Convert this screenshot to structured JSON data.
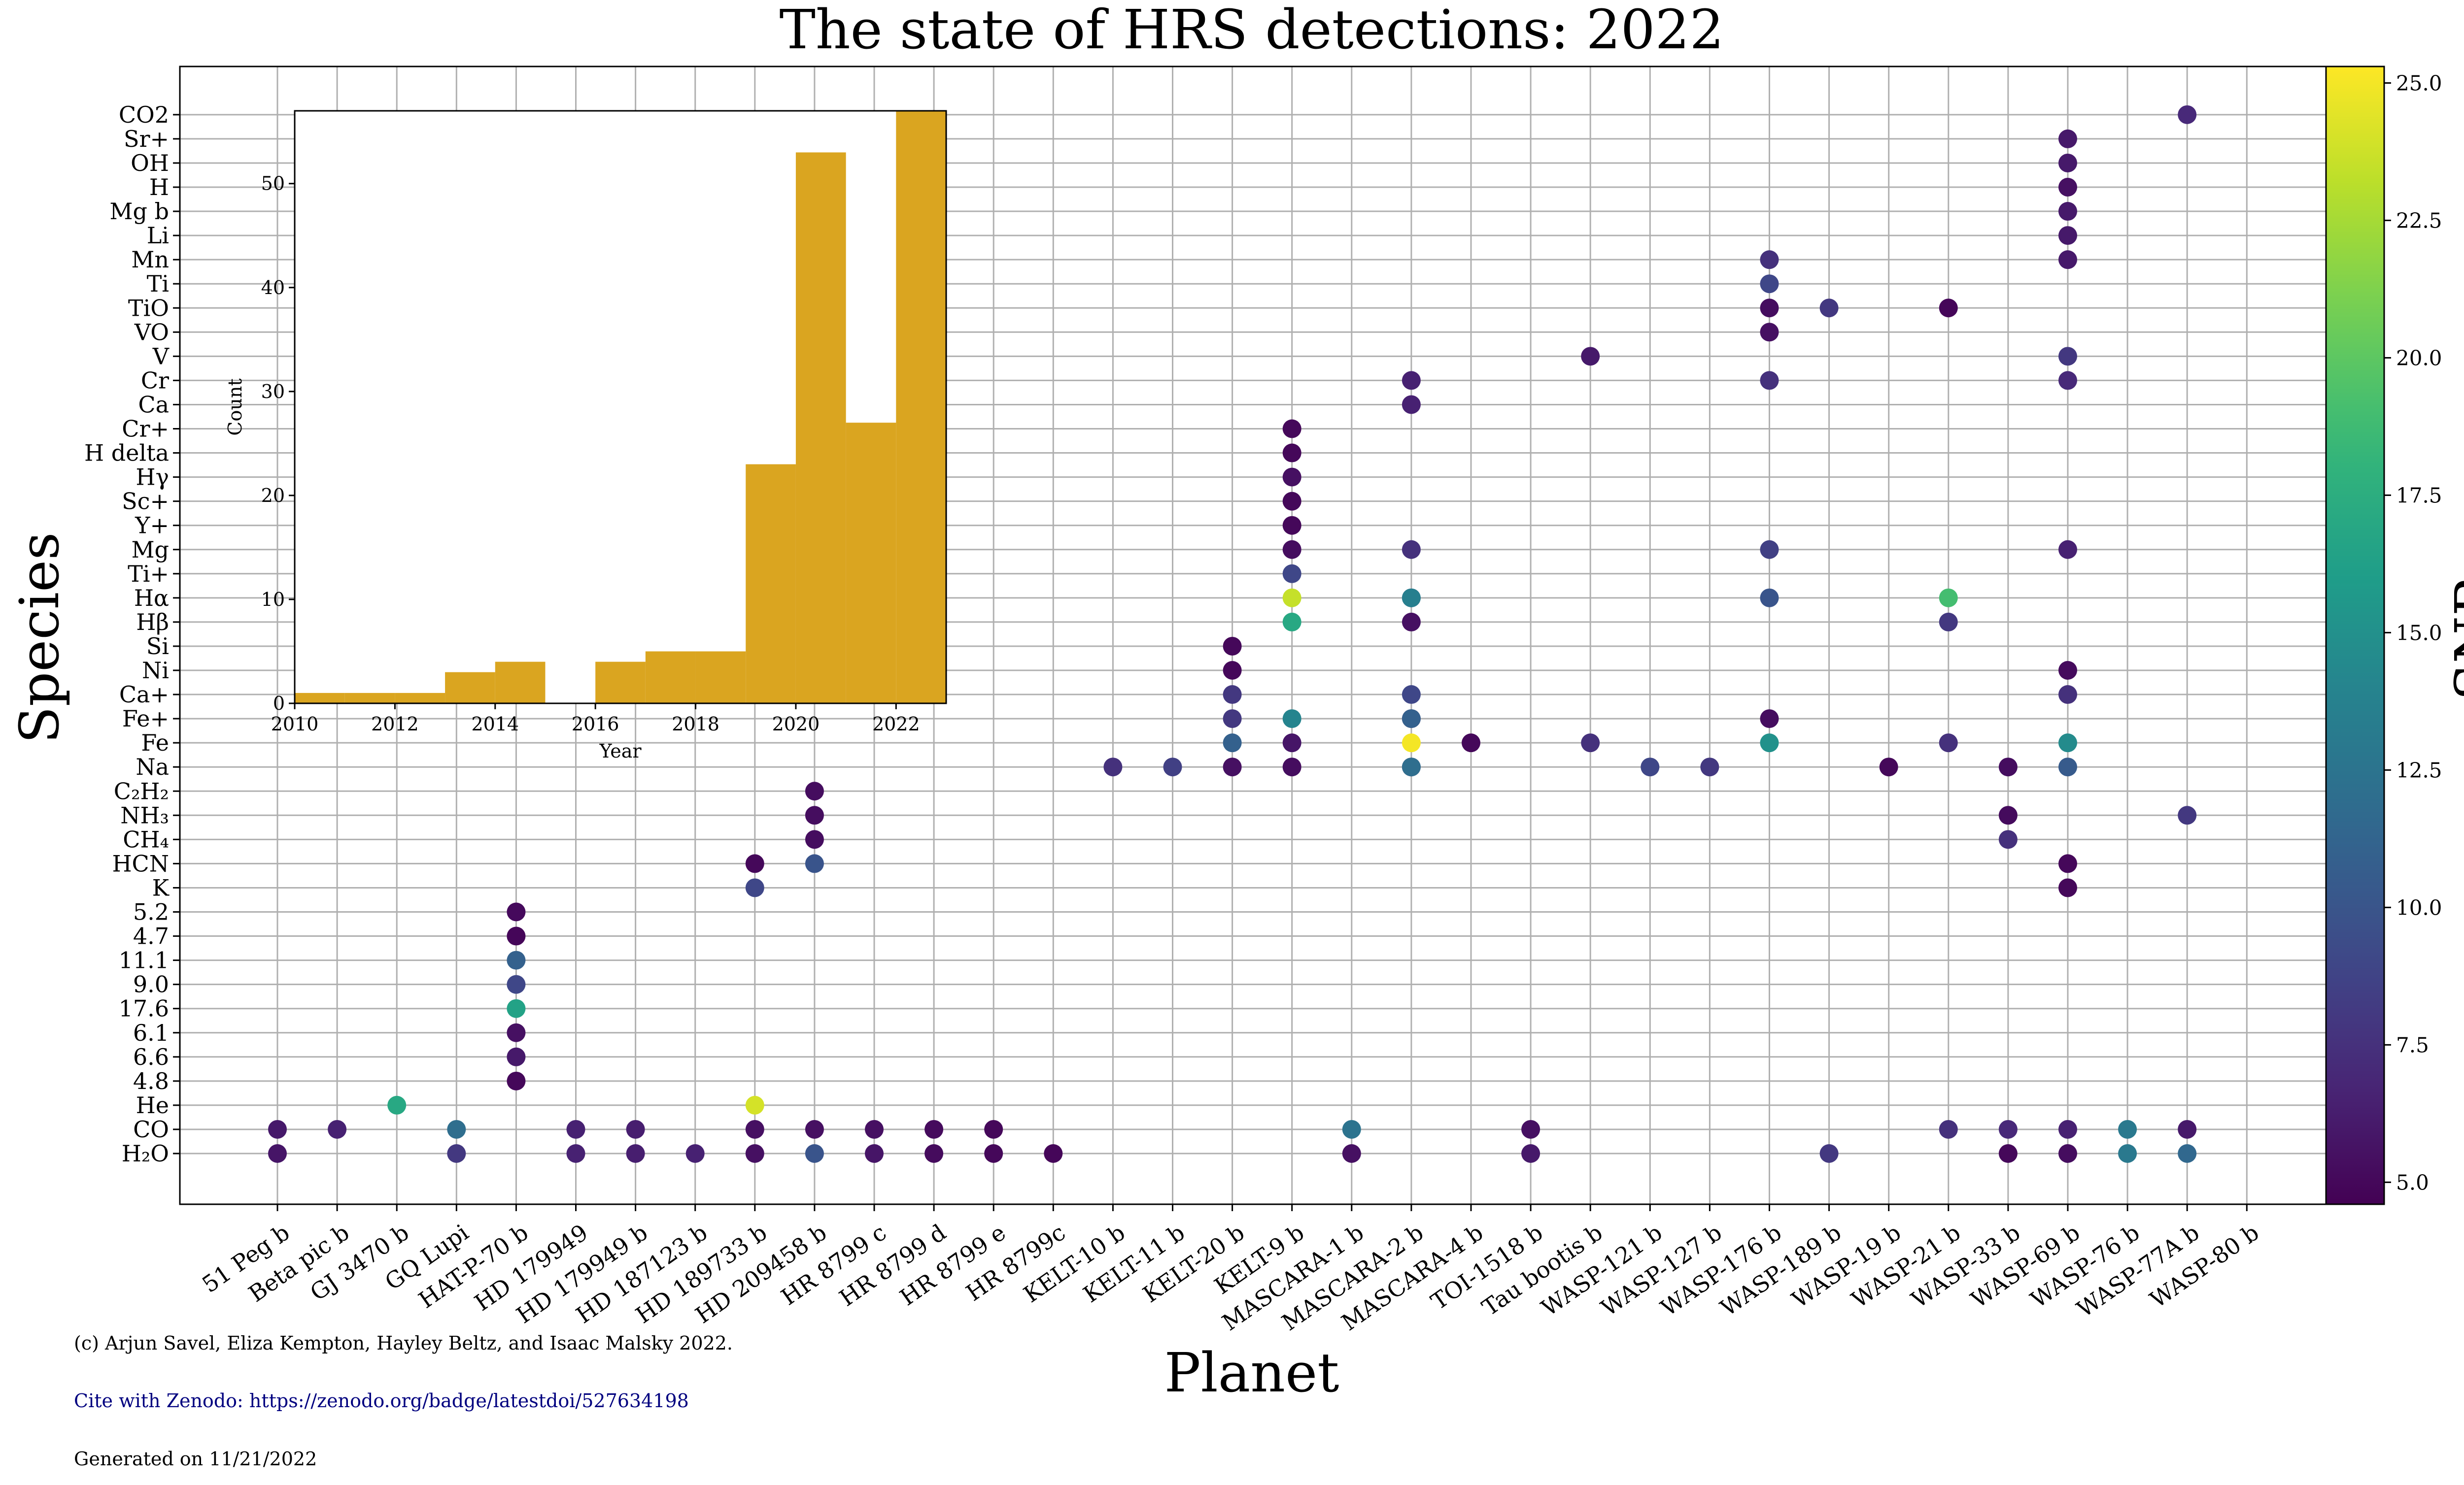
{
  "chart_data": {
    "type": "scatter",
    "title": "The state of HRS detections: 2022",
    "xlabel": "Planet",
    "ylabel": "Species",
    "grid": true,
    "colorbar": {
      "label": "SNR",
      "colormap": "viridis",
      "range": [
        4.6,
        25.3
      ],
      "ticks": [
        "5.0",
        "7.5",
        "10.0",
        "12.5",
        "15.0",
        "17.5",
        "20.0",
        "22.5",
        "25.0"
      ]
    },
    "planets": [
      "51 Peg b",
      "Beta pic b",
      "GJ 3470 b",
      "GQ Lupi",
      "HAT-P-70 b",
      "HD 179949",
      "HD 179949 b",
      "HD 187123 b",
      "HD 189733 b",
      "HD 209458 b",
      "HR 8799 c",
      "HR 8799 d",
      "HR 8799 e",
      "HR 8799c",
      "KELT-10 b",
      "KELT-11 b",
      "KELT-20 b",
      "KELT-9 b",
      "MASCARA-1 b",
      "MASCARA-2 b",
      "MASCARA-4 b",
      "TOI-1518 b",
      "Tau bootis b",
      "WASP-121 b",
      "WASP-127 b",
      "WASP-176 b",
      "WASP-189 b",
      "WASP-19 b",
      "WASP-21 b",
      "WASP-33 b",
      "WASP-69 b",
      "WASP-76 b",
      "WASP-77A b",
      "WASP-80 b"
    ],
    "species": [
      "H2O",
      "CO",
      "He",
      "4.8",
      "6.6",
      "6.1",
      "17.6",
      "9.0",
      "11.1",
      "4.7",
      "5.2",
      "K",
      "HCN",
      "CH4",
      "NH3",
      "C2H2",
      "Na",
      "Fe",
      "Fe+",
      "Ca+",
      "Ni",
      "Si",
      "Hβ",
      "Hα",
      "Ti+",
      "Mg",
      "Y+",
      "Sc+",
      "Hγ",
      "H delta",
      "Cr+",
      "Ca",
      "Cr",
      "V",
      "VO",
      "TiO",
      "Ti",
      "Mn",
      "Li",
      "Mg b",
      "H",
      "OH",
      "Sr+",
      "CO2"
    ],
    "species_display": [
      "H₂O",
      "CO",
      "He",
      "4.8",
      "6.6",
      "6.1",
      "17.6",
      "9.0",
      "11.1",
      "4.7",
      "5.2",
      "K",
      "HCN",
      "CH₄",
      "NH₃",
      "C₂H₂",
      "Na",
      "Fe",
      "Fe+",
      "Ca+",
      "Ni",
      "Si",
      "Hβ",
      "Hα",
      "Ti+",
      "Mg",
      "Y+",
      "Sc+",
      "Hγ",
      "H delta",
      "Cr+",
      "Ca",
      "Cr",
      "V",
      "VO",
      "TiO",
      "Ti",
      "Mn",
      "Li",
      "Mg b",
      "H",
      "OH",
      "Sr+",
      "CO2"
    ],
    "points": [
      {
        "planet": "51 Peg b",
        "species": "H2O",
        "snr": 5.8
      },
      {
        "planet": "51 Peg b",
        "species": "CO",
        "snr": 6.0
      },
      {
        "planet": "Beta pic b",
        "species": "CO",
        "snr": 6.5
      },
      {
        "planet": "GJ 3470 b",
        "species": "He",
        "snr": 17.0
      },
      {
        "planet": "GQ Lupi",
        "species": "H2O",
        "snr": 8.0
      },
      {
        "planet": "GQ Lupi",
        "species": "CO",
        "snr": 12.0
      },
      {
        "planet": "HAT-P-70 b",
        "species": "4.8",
        "snr": 5.0
      },
      {
        "planet": "HAT-P-70 b",
        "species": "6.6",
        "snr": 6.0
      },
      {
        "planet": "HAT-P-70 b",
        "species": "6.1",
        "snr": 5.5
      },
      {
        "planet": "HAT-P-70 b",
        "species": "17.6",
        "snr": 16.5
      },
      {
        "planet": "HAT-P-70 b",
        "species": "9.0",
        "snr": 9.0
      },
      {
        "planet": "HAT-P-70 b",
        "species": "11.1",
        "snr": 11.0
      },
      {
        "planet": "HAT-P-70 b",
        "species": "4.7",
        "snr": 4.9
      },
      {
        "planet": "HAT-P-70 b",
        "species": "5.2",
        "snr": 5.1
      },
      {
        "planet": "HD 179949",
        "species": "H2O",
        "snr": 6.5
      },
      {
        "planet": "HD 179949",
        "species": "CO",
        "snr": 6.5
      },
      {
        "planet": "HD 179949 b",
        "species": "H2O",
        "snr": 6.3
      },
      {
        "planet": "HD 179949 b",
        "species": "CO",
        "snr": 6.3
      },
      {
        "planet": "HD 187123 b",
        "species": "H2O",
        "snr": 6.5
      },
      {
        "planet": "HD 189733 b",
        "species": "H2O",
        "snr": 5.5
      },
      {
        "planet": "HD 189733 b",
        "species": "CO",
        "snr": 5.5
      },
      {
        "planet": "HD 189733 b",
        "species": "He",
        "snr": 24.0
      },
      {
        "planet": "HD 189733 b",
        "species": "K",
        "snr": 9.0
      },
      {
        "planet": "HD 189733 b",
        "species": "HCN",
        "snr": 5.0
      },
      {
        "planet": "HD 209458 b",
        "species": "H2O",
        "snr": 10.0
      },
      {
        "planet": "HD 209458 b",
        "species": "CO",
        "snr": 5.5
      },
      {
        "planet": "HD 209458 b",
        "species": "HCN",
        "snr": 10.0
      },
      {
        "planet": "HD 209458 b",
        "species": "CH4",
        "snr": 5.3
      },
      {
        "planet": "HD 209458 b",
        "species": "NH3",
        "snr": 5.3
      },
      {
        "planet": "HD 209458 b",
        "species": "C2H2",
        "snr": 5.3
      },
      {
        "planet": "HR 8799 c",
        "species": "H2O",
        "snr": 5.8
      },
      {
        "planet": "HR 8799 c",
        "species": "CO",
        "snr": 5.5
      },
      {
        "planet": "HR 8799 d",
        "species": "H2O",
        "snr": 5.2
      },
      {
        "planet": "HR 8799 d",
        "species": "CO",
        "snr": 5.2
      },
      {
        "planet": "HR 8799 e",
        "species": "H2O",
        "snr": 5.0
      },
      {
        "planet": "HR 8799 e",
        "species": "CO",
        "snr": 5.0
      },
      {
        "planet": "HR 8799c",
        "species": "H2O",
        "snr": 4.9
      },
      {
        "planet": "KELT-10 b",
        "species": "Na",
        "snr": 7.5
      },
      {
        "planet": "KELT-11 b",
        "species": "Na",
        "snr": 8.5
      },
      {
        "planet": "KELT-20 b",
        "species": "Na",
        "snr": 5.5
      },
      {
        "planet": "KELT-20 b",
        "species": "Fe",
        "snr": 11.0
      },
      {
        "planet": "KELT-20 b",
        "species": "Fe+",
        "snr": 8.0
      },
      {
        "planet": "KELT-20 b",
        "species": "Ca+",
        "snr": 8.0
      },
      {
        "planet": "KELT-20 b",
        "species": "Ni",
        "snr": 5.0
      },
      {
        "planet": "KELT-20 b",
        "species": "Si",
        "snr": 5.0
      },
      {
        "planet": "KELT-9 b",
        "species": "Na",
        "snr": 5.3
      },
      {
        "planet": "KELT-9 b",
        "species": "Fe",
        "snr": 5.8
      },
      {
        "planet": "KELT-9 b",
        "species": "Fe+",
        "snr": 14.0
      },
      {
        "planet": "KELT-9 b",
        "species": "Hβ",
        "snr": 17.0
      },
      {
        "planet": "KELT-9 b",
        "species": "Hα",
        "snr": 23.5
      },
      {
        "planet": "KELT-9 b",
        "species": "Ti+",
        "snr": 9.0
      },
      {
        "planet": "KELT-9 b",
        "species": "Mg",
        "snr": 5.3
      },
      {
        "planet": "KELT-9 b",
        "species": "Y+",
        "snr": 5.0
      },
      {
        "planet": "KELT-9 b",
        "species": "Sc+",
        "snr": 5.0
      },
      {
        "planet": "KELT-9 b",
        "species": "Hγ",
        "snr": 5.5
      },
      {
        "planet": "KELT-9 b",
        "species": "H delta",
        "snr": 5.0
      },
      {
        "planet": "KELT-9 b",
        "species": "Cr+",
        "snr": 5.0
      },
      {
        "planet": "MASCARA-1 b",
        "species": "H2O",
        "snr": 5.5
      },
      {
        "planet": "MASCARA-1 b",
        "species": "CO",
        "snr": 12.5
      },
      {
        "planet": "MASCARA-2 b",
        "species": "Na",
        "snr": 7.0
      },
      {
        "planet": "MASCARA-2 b",
        "species": "Fe+",
        "snr": 5.3
      },
      {
        "planet": "MASCARA-2 b",
        "species": "Hα",
        "snr": 9.0
      },
      {
        "planet": "MASCARA-2 b",
        "species": "Na",
        "snr": 12.0
      },
      {
        "planet": "MASCARA-2 b",
        "species": "Fe",
        "snr": 25.0
      },
      {
        "planet": "MASCARA-2 b",
        "species": "Fe+",
        "snr": 11.0
      },
      {
        "planet": "MASCARA-2 b",
        "species": "Ca+",
        "snr": 9.0
      },
      {
        "planet": "MASCARA-2 b",
        "species": "Hβ",
        "snr": 5.5
      },
      {
        "planet": "MASCARA-2 b",
        "species": "Hα",
        "snr": 13.5
      },
      {
        "planet": "MASCARA-2 b",
        "species": "Mg",
        "snr": 7.5
      },
      {
        "planet": "MASCARA-2 b",
        "species": "Ca",
        "snr": 6.5
      },
      {
        "planet": "MASCARA-2 b",
        "species": "Cr",
        "snr": 6.5
      },
      {
        "planet": "MASCARA-4 b",
        "species": "Fe",
        "snr": 5.0
      },
      {
        "planet": "TOI-1518 b",
        "species": "H2O",
        "snr": 6.0
      },
      {
        "planet": "TOI-1518 b",
        "species": "CO",
        "snr": 5.5
      },
      {
        "planet": "Tau bootis b",
        "species": "V",
        "snr": 6.0
      },
      {
        "planet": "Tau bootis b",
        "species": "Fe",
        "snr": 7.5
      },
      {
        "planet": "WASP-121 b",
        "species": "Na",
        "snr": 9.0
      },
      {
        "planet": "WASP-127 b",
        "species": "Na",
        "snr": 8.0
      },
      {
        "planet": "WASP-176 b",
        "species": "Fe",
        "snr": 15.0
      },
      {
        "planet": "WASP-176 b",
        "species": "Fe+",
        "snr": 5.3
      },
      {
        "planet": "WASP-176 b",
        "species": "Hα",
        "snr": 10.0
      },
      {
        "planet": "WASP-176 b",
        "species": "Mg",
        "snr": 8.5
      },
      {
        "planet": "WASP-176 b",
        "species": "Cr",
        "snr": 7.5
      },
      {
        "planet": "WASP-176 b",
        "species": "VO",
        "snr": 5.5
      },
      {
        "planet": "WASP-176 b",
        "species": "TiO",
        "snr": 5.3
      },
      {
        "planet": "WASP-176 b",
        "species": "Ti",
        "snr": 9.0
      },
      {
        "planet": "WASP-176 b",
        "species": "Mn",
        "snr": 7.5
      },
      {
        "planet": "WASP-189 b",
        "species": "H2O",
        "snr": 8.0
      },
      {
        "planet": "WASP-189 b",
        "species": "TiO",
        "snr": 8.0
      },
      {
        "planet": "WASP-19 b",
        "species": "Na",
        "snr": 5.0
      },
      {
        "planet": "WASP-21 b",
        "species": "CO",
        "snr": 7.5
      },
      {
        "planet": "WASP-21 b",
        "species": "Fe",
        "snr": 7.5
      },
      {
        "planet": "WASP-21 b",
        "species": "Hβ",
        "snr": 8.0
      },
      {
        "planet": "WASP-21 b",
        "species": "Hα",
        "snr": 19.0
      },
      {
        "planet": "WASP-21 b",
        "species": "TiO",
        "snr": 4.9
      },
      {
        "planet": "WASP-33 b",
        "species": "H2O",
        "snr": 5.0
      },
      {
        "planet": "WASP-33 b",
        "species": "CO",
        "snr": 7.0
      },
      {
        "planet": "WASP-33 b",
        "species": "Na",
        "snr": 5.3
      },
      {
        "planet": "WASP-33 b",
        "species": "NH3",
        "snr": 5.2
      },
      {
        "planet": "WASP-33 b",
        "species": "CH4",
        "snr": 7.5
      },
      {
        "planet": "WASP-69 b",
        "species": "H2O",
        "snr": 5.3
      },
      {
        "planet": "WASP-69 b",
        "species": "CO",
        "snr": 6.5
      },
      {
        "planet": "WASP-69 b",
        "species": "K",
        "snr": 5.0
      },
      {
        "planet": "WASP-69 b",
        "species": "HCN",
        "snr": 5.0
      },
      {
        "planet": "WASP-69 b",
        "species": "Na",
        "snr": 10.5
      },
      {
        "planet": "WASP-69 b",
        "species": "Fe",
        "snr": 14.5
      },
      {
        "planet": "WASP-69 b",
        "species": "Ca+",
        "snr": 7.5
      },
      {
        "planet": "WASP-69 b",
        "species": "Ni",
        "snr": 5.2
      },
      {
        "planet": "WASP-69 b",
        "species": "Mg",
        "snr": 6.5
      },
      {
        "planet": "WASP-69 b",
        "species": "Cr",
        "snr": 7.0
      },
      {
        "planet": "WASP-69 b",
        "species": "V",
        "snr": 8.0
      },
      {
        "planet": "WASP-69 b",
        "species": "Mn",
        "snr": 6.0
      },
      {
        "planet": "WASP-69 b",
        "species": "Li",
        "snr": 6.0
      },
      {
        "planet": "WASP-69 b",
        "species": "Mg b",
        "snr": 6.0
      },
      {
        "planet": "WASP-69 b",
        "species": "H",
        "snr": 5.5
      },
      {
        "planet": "WASP-69 b",
        "species": "OH",
        "snr": 6.0
      },
      {
        "planet": "WASP-69 b",
        "species": "Sr+",
        "snr": 6.0
      },
      {
        "planet": "WASP-76 b",
        "species": "H2O",
        "snr": 13.0
      },
      {
        "planet": "WASP-76 b",
        "species": "CO",
        "snr": 13.0
      },
      {
        "planet": "WASP-77A b",
        "species": "H2O",
        "snr": 11.5
      },
      {
        "planet": "WASP-77A b",
        "species": "CO",
        "snr": 6.0
      },
      {
        "planet": "WASP-77A b",
        "species": "NH3",
        "snr": 8.0
      },
      {
        "planet": "WASP-77A b",
        "species": "CO2",
        "snr": 7.0
      }
    ],
    "inset_histogram": {
      "type": "bar",
      "xlabel": "Year",
      "ylabel": "Count",
      "xlim": [
        2010,
        2023
      ],
      "ylim": [
        0,
        57
      ],
      "x_ticks": [
        2010,
        2012,
        2014,
        2016,
        2018,
        2020,
        2022
      ],
      "y_ticks": [
        0,
        10,
        20,
        30,
        40,
        50
      ],
      "bin_edges": [
        2010,
        2011,
        2012,
        2013,
        2014,
        2015,
        2016,
        2017,
        2018,
        2019,
        2020,
        2021,
        2022,
        2023
      ],
      "counts": [
        1,
        1,
        1,
        3,
        4,
        0,
        4,
        5,
        5,
        23,
        53,
        27,
        57
      ],
      "color": "#daa520"
    }
  },
  "footer": {
    "credit": "(c) Arjun Savel, Eliza Kempton, Hayley Beltz, and Isaac Malsky 2022.",
    "cite": "Cite with Zenodo: https://zenodo.org/badge/latestdoi/527634198",
    "generated": "Generated on 11/21/2022"
  }
}
